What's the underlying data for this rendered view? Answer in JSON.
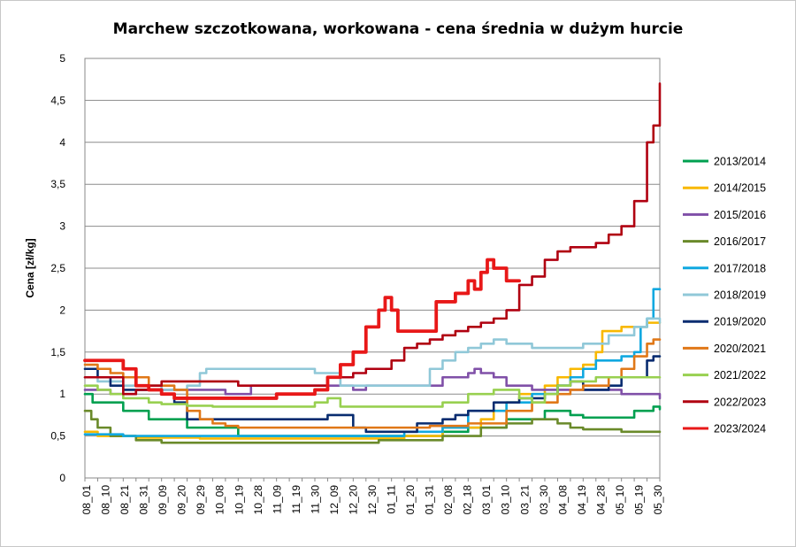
{
  "chart_data": {
    "type": "line",
    "title": "Marchew szczotkowana, workowana - cena średnia w dużym hurcie",
    "xlabel": "",
    "ylabel": "Cena [zł/kg]",
    "ylim": [
      0,
      5
    ],
    "yticks": [
      "0",
      "0,5",
      "1",
      "1,5",
      "2",
      "2,5",
      "3",
      "3,5",
      "4",
      "4,5",
      "5"
    ],
    "x_count": 45,
    "x_tick_labels": [
      "08_01",
      "08_10",
      "08_21",
      "08_31",
      "09_09",
      "09_20",
      "09_29",
      "10_08",
      "10_19",
      "10_28",
      "11_09",
      "11_19",
      "11_30",
      "12_09",
      "12_20",
      "12_30",
      "01_11",
      "01_20",
      "01_31",
      "02_08",
      "02_18",
      "03_01",
      "03_10",
      "03_21",
      "03_30",
      "04_08",
      "04_19",
      "04_28",
      "05_10",
      "05_19",
      "05_30"
    ],
    "grid": true,
    "legend_position": "right",
    "series": [
      {
        "name": "2013/2014",
        "color": "#00A050",
        "width": 2.6,
        "points": [
          [
            0,
            1.0
          ],
          [
            0.6,
            0.9
          ],
          [
            3,
            0.8
          ],
          [
            5,
            0.7
          ],
          [
            8,
            0.6
          ],
          [
            12,
            0.5
          ],
          [
            20,
            0.5
          ],
          [
            27,
            0.5
          ],
          [
            28,
            0.55
          ],
          [
            30,
            0.6
          ],
          [
            33,
            0.7
          ],
          [
            36,
            0.8
          ],
          [
            38,
            0.75
          ],
          [
            39,
            0.72
          ],
          [
            43,
            0.8
          ],
          [
            44,
            0.8
          ],
          [
            44.5,
            0.85
          ],
          [
            45,
            0.82
          ]
        ]
      },
      {
        "name": "2014/2015",
        "color": "#F8B800",
        "width": 2.6,
        "points": [
          [
            0,
            0.55
          ],
          [
            1,
            0.5
          ],
          [
            4,
            0.48
          ],
          [
            9,
            0.47
          ],
          [
            18,
            0.47
          ],
          [
            25,
            0.5
          ],
          [
            28,
            0.6
          ],
          [
            31,
            0.7
          ],
          [
            32,
            0.8
          ],
          [
            33,
            0.9
          ],
          [
            34,
            1.0
          ],
          [
            36,
            1.1
          ],
          [
            37,
            1.2
          ],
          [
            38,
            1.3
          ],
          [
            39,
            1.35
          ],
          [
            40,
            1.5
          ],
          [
            40.5,
            1.75
          ],
          [
            42,
            1.8
          ],
          [
            43,
            1.8
          ],
          [
            44,
            1.85
          ],
          [
            45,
            1.85
          ]
        ]
      },
      {
        "name": "2015/2016",
        "color": "#8050A8",
        "width": 2.6,
        "points": [
          [
            0,
            1.05
          ],
          [
            2,
            1.0
          ],
          [
            4,
            1.05
          ],
          [
            9,
            1.05
          ],
          [
            11,
            1.0
          ],
          [
            13,
            1.1
          ],
          [
            19,
            1.1
          ],
          [
            21,
            1.05
          ],
          [
            22,
            1.1
          ],
          [
            26,
            1.1
          ],
          [
            28,
            1.2
          ],
          [
            30,
            1.25
          ],
          [
            30.5,
            1.3
          ],
          [
            31,
            1.25
          ],
          [
            32,
            1.2
          ],
          [
            33,
            1.1
          ],
          [
            35,
            1.05
          ],
          [
            41,
            1.05
          ],
          [
            42,
            1.0
          ],
          [
            44,
            1.0
          ],
          [
            45,
            0.95
          ]
        ]
      },
      {
        "name": "2016/2017",
        "color": "#6A8A2A",
        "width": 2.6,
        "points": [
          [
            0,
            0.8
          ],
          [
            0.5,
            0.7
          ],
          [
            1,
            0.6
          ],
          [
            2,
            0.5
          ],
          [
            4,
            0.45
          ],
          [
            6,
            0.42
          ],
          [
            19,
            0.42
          ],
          [
            23,
            0.45
          ],
          [
            28,
            0.5
          ],
          [
            31,
            0.6
          ],
          [
            33,
            0.65
          ],
          [
            35,
            0.7
          ],
          [
            37,
            0.65
          ],
          [
            38,
            0.6
          ],
          [
            39,
            0.58
          ],
          [
            42,
            0.55
          ],
          [
            44,
            0.55
          ],
          [
            45,
            0.55
          ]
        ]
      },
      {
        "name": "2017/2018",
        "color": "#10A8E0",
        "width": 2.6,
        "points": [
          [
            0,
            0.52
          ],
          [
            3,
            0.5
          ],
          [
            10,
            0.5
          ],
          [
            22,
            0.5
          ],
          [
            25,
            0.55
          ],
          [
            28,
            0.6
          ],
          [
            30,
            0.8
          ],
          [
            33,
            0.9
          ],
          [
            35,
            1.0
          ],
          [
            37,
            1.1
          ],
          [
            38,
            1.2
          ],
          [
            39,
            1.3
          ],
          [
            40,
            1.4
          ],
          [
            41,
            1.4
          ],
          [
            42,
            1.45
          ],
          [
            43,
            1.5
          ],
          [
            43.5,
            1.8
          ],
          [
            44,
            1.9
          ],
          [
            44.5,
            2.25
          ],
          [
            45,
            2.25
          ]
        ]
      },
      {
        "name": "2018/2019",
        "color": "#90C8D8",
        "width": 2.6,
        "points": [
          [
            0,
            1.2
          ],
          [
            1,
            1.15
          ],
          [
            3,
            1.1
          ],
          [
            6,
            1.05
          ],
          [
            8,
            1.1
          ],
          [
            9,
            1.25
          ],
          [
            9.5,
            1.3
          ],
          [
            16,
            1.3
          ],
          [
            18,
            1.25
          ],
          [
            20,
            1.1
          ],
          [
            25,
            1.1
          ],
          [
            26,
            1.1
          ],
          [
            27,
            1.3
          ],
          [
            28,
            1.4
          ],
          [
            29,
            1.5
          ],
          [
            30,
            1.55
          ],
          [
            31,
            1.6
          ],
          [
            32,
            1.65
          ],
          [
            33,
            1.6
          ],
          [
            35,
            1.55
          ],
          [
            38,
            1.55
          ],
          [
            39,
            1.6
          ],
          [
            41,
            1.7
          ],
          [
            43,
            1.8
          ],
          [
            44,
            1.9
          ],
          [
            45,
            1.85
          ]
        ]
      },
      {
        "name": "2019/2020",
        "color": "#082C70",
        "width": 2.6,
        "points": [
          [
            0,
            1.3
          ],
          [
            1,
            1.2
          ],
          [
            2,
            1.1
          ],
          [
            3,
            1.05
          ],
          [
            5,
            1.05
          ],
          [
            6,
            1.0
          ],
          [
            7,
            0.9
          ],
          [
            8,
            0.7
          ],
          [
            10,
            0.7
          ],
          [
            15,
            0.7
          ],
          [
            19,
            0.75
          ],
          [
            21,
            0.6
          ],
          [
            22,
            0.55
          ],
          [
            25,
            0.55
          ],
          [
            26,
            0.65
          ],
          [
            28,
            0.7
          ],
          [
            29,
            0.75
          ],
          [
            30,
            0.8
          ],
          [
            32,
            0.9
          ],
          [
            34,
            0.95
          ],
          [
            36,
            1.0
          ],
          [
            37,
            1.1
          ],
          [
            38,
            1.15
          ],
          [
            39,
            1.05
          ],
          [
            41,
            1.1
          ],
          [
            42,
            1.2
          ],
          [
            44,
            1.4
          ],
          [
            44.5,
            1.45
          ],
          [
            45,
            1.45
          ]
        ]
      },
      {
        "name": "2020/2021",
        "color": "#E07818",
        "width": 2.6,
        "points": [
          [
            0,
            1.35
          ],
          [
            1,
            1.3
          ],
          [
            2,
            1.25
          ],
          [
            3,
            1.2
          ],
          [
            5,
            1.1
          ],
          [
            7,
            1.05
          ],
          [
            8,
            0.8
          ],
          [
            9,
            0.7
          ],
          [
            10,
            0.65
          ],
          [
            11,
            0.62
          ],
          [
            12,
            0.6
          ],
          [
            15,
            0.6
          ],
          [
            18,
            0.6
          ],
          [
            19,
            0.6
          ],
          [
            23,
            0.6
          ],
          [
            27,
            0.62
          ],
          [
            30,
            0.65
          ],
          [
            33,
            0.8
          ],
          [
            35,
            0.9
          ],
          [
            37,
            1.0
          ],
          [
            38,
            1.05
          ],
          [
            39,
            1.1
          ],
          [
            41,
            1.2
          ],
          [
            42,
            1.3
          ],
          [
            43,
            1.45
          ],
          [
            44,
            1.6
          ],
          [
            44.5,
            1.65
          ],
          [
            45,
            1.65
          ]
        ]
      },
      {
        "name": "2021/2022",
        "color": "#98D050",
        "width": 2.6,
        "points": [
          [
            0,
            1.1
          ],
          [
            1,
            1.05
          ],
          [
            2,
            1.0
          ],
          [
            3,
            0.95
          ],
          [
            5,
            0.9
          ],
          [
            6,
            0.88
          ],
          [
            8,
            0.86
          ],
          [
            10,
            0.85
          ],
          [
            15,
            0.85
          ],
          [
            17,
            0.85
          ],
          [
            18,
            0.9
          ],
          [
            19,
            0.95
          ],
          [
            20,
            0.85
          ],
          [
            27,
            0.85
          ],
          [
            28,
            0.9
          ],
          [
            30,
            1.0
          ],
          [
            32,
            1.05
          ],
          [
            34,
            0.95
          ],
          [
            35,
            0.9
          ],
          [
            36,
            1.0
          ],
          [
            37,
            1.1
          ],
          [
            38,
            1.15
          ],
          [
            40,
            1.2
          ],
          [
            43,
            1.2
          ],
          [
            45,
            1.2
          ]
        ]
      },
      {
        "name": "2022/2023",
        "color": "#B00010",
        "width": 2.6,
        "points": [
          [
            0,
            1.2
          ],
          [
            3,
            1.0
          ],
          [
            4,
            1.05
          ],
          [
            5,
            1.1
          ],
          [
            6,
            1.15
          ],
          [
            12,
            1.1
          ],
          [
            15,
            1.1
          ],
          [
            18,
            1.1
          ],
          [
            19,
            1.2
          ],
          [
            21,
            1.25
          ],
          [
            22,
            1.3
          ],
          [
            24,
            1.4
          ],
          [
            25,
            1.55
          ],
          [
            26,
            1.6
          ],
          [
            27,
            1.65
          ],
          [
            28,
            1.7
          ],
          [
            29,
            1.75
          ],
          [
            30,
            1.8
          ],
          [
            31,
            1.85
          ],
          [
            32,
            1.9
          ],
          [
            33,
            2.0
          ],
          [
            34,
            2.3
          ],
          [
            35,
            2.4
          ],
          [
            36,
            2.6
          ],
          [
            37,
            2.7
          ],
          [
            38,
            2.75
          ],
          [
            40,
            2.8
          ],
          [
            41,
            2.9
          ],
          [
            42,
            3.0
          ],
          [
            43,
            3.3
          ],
          [
            44,
            4.0
          ],
          [
            44.5,
            4.2
          ],
          [
            45,
            4.7
          ]
        ]
      },
      {
        "name": "2023/2024",
        "color": "#E81818",
        "width": 3.8,
        "points": [
          [
            0,
            1.4
          ],
          [
            1,
            1.4
          ],
          [
            3,
            1.3
          ],
          [
            4,
            1.1
          ],
          [
            5,
            1.05
          ],
          [
            6,
            1.0
          ],
          [
            7,
            0.95
          ],
          [
            9,
            0.95
          ],
          [
            13,
            0.95
          ],
          [
            15,
            1.0
          ],
          [
            16,
            1.0
          ],
          [
            18,
            1.05
          ],
          [
            19,
            1.2
          ],
          [
            20,
            1.35
          ],
          [
            21,
            1.5
          ],
          [
            22,
            1.8
          ],
          [
            23,
            2.0
          ],
          [
            23.5,
            2.15
          ],
          [
            24,
            2.0
          ],
          [
            24.5,
            1.75
          ],
          [
            25,
            1.75
          ],
          [
            27,
            1.75
          ],
          [
            27.5,
            2.1
          ],
          [
            28,
            2.1
          ],
          [
            29,
            2.2
          ],
          [
            30,
            2.35
          ],
          [
            30.5,
            2.25
          ],
          [
            31,
            2.45
          ],
          [
            31.5,
            2.6
          ],
          [
            32,
            2.5
          ],
          [
            33,
            2.35
          ],
          [
            34,
            2.35
          ]
        ]
      }
    ]
  }
}
